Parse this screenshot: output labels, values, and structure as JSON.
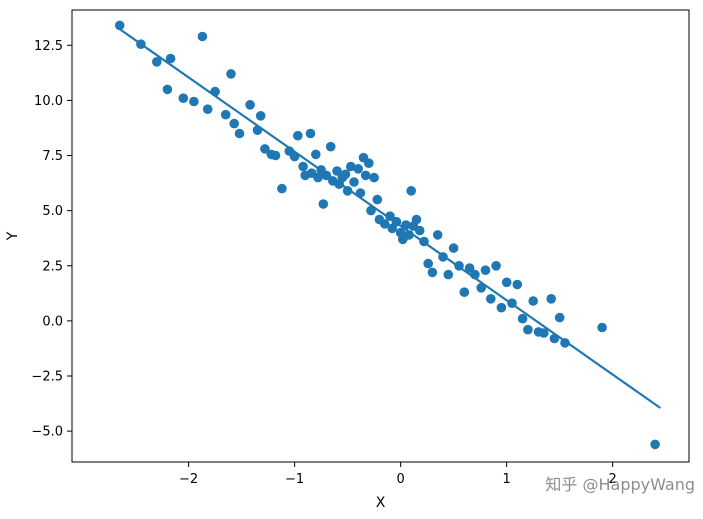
{
  "figure": {
    "background": "#ffffff"
  },
  "watermark": {
    "text": "知乎 @HappyWang",
    "color": "#8e8e8e"
  },
  "chart_data": {
    "type": "scatter",
    "title": "",
    "xlabel": "X",
    "ylabel": "Y",
    "xlim": [
      -3.1,
      2.72
    ],
    "ylim": [
      -6.4,
      14.1
    ],
    "grid": false,
    "legend": "none",
    "point_color": "#1f77b4",
    "line_color": "#1f77b4",
    "axis_color": "#000000",
    "xticks": [
      {
        "value": -2,
        "label": "−2"
      },
      {
        "value": -1,
        "label": "−1"
      },
      {
        "value": 0,
        "label": "0"
      },
      {
        "value": 1,
        "label": "1"
      },
      {
        "value": 2,
        "label": "2"
      }
    ],
    "yticks": [
      {
        "value": 12.5,
        "label": "12.5"
      },
      {
        "value": 10.0,
        "label": "10.0"
      },
      {
        "value": 7.5,
        "label": "7.5"
      },
      {
        "value": 5.0,
        "label": "5.0"
      },
      {
        "value": 2.5,
        "label": "2.5"
      },
      {
        "value": 0.0,
        "label": "0.0"
      },
      {
        "value": -2.5,
        "label": "−2.5"
      },
      {
        "value": -5.0,
        "label": "−5.0"
      }
    ],
    "regression_line": {
      "x1": -2.67,
      "y1": 13.3,
      "x2": 2.45,
      "y2": -3.95
    },
    "points": [
      [
        -2.65,
        13.4
      ],
      [
        -2.45,
        12.55
      ],
      [
        -2.3,
        11.75
      ],
      [
        -2.17,
        11.9
      ],
      [
        -2.2,
        10.5
      ],
      [
        -2.05,
        10.1
      ],
      [
        -1.87,
        12.9
      ],
      [
        -1.95,
        9.95
      ],
      [
        -1.82,
        9.6
      ],
      [
        -1.75,
        10.4
      ],
      [
        -1.6,
        11.2
      ],
      [
        -1.65,
        9.35
      ],
      [
        -1.57,
        8.95
      ],
      [
        -1.52,
        8.5
      ],
      [
        -1.42,
        9.8
      ],
      [
        -1.32,
        9.3
      ],
      [
        -1.35,
        8.65
      ],
      [
        -1.28,
        7.8
      ],
      [
        -1.22,
        7.55
      ],
      [
        -1.18,
        7.5
      ],
      [
        -1.12,
        6.0
      ],
      [
        -1.05,
        7.7
      ],
      [
        -1.0,
        7.45
      ],
      [
        -0.97,
        8.4
      ],
      [
        -0.92,
        7.0
      ],
      [
        -0.9,
        6.6
      ],
      [
        -0.85,
        8.5
      ],
      [
        -0.84,
        6.7
      ],
      [
        -0.8,
        7.55
      ],
      [
        -0.78,
        6.5
      ],
      [
        -0.75,
        6.85
      ],
      [
        -0.73,
        5.3
      ],
      [
        -0.7,
        6.6
      ],
      [
        -0.66,
        7.9
      ],
      [
        -0.64,
        6.35
      ],
      [
        -0.6,
        6.8
      ],
      [
        -0.58,
        6.2
      ],
      [
        -0.55,
        6.5
      ],
      [
        -0.52,
        6.65
      ],
      [
        -0.5,
        5.9
      ],
      [
        -0.47,
        7.0
      ],
      [
        -0.44,
        6.3
      ],
      [
        -0.4,
        6.9
      ],
      [
        -0.38,
        5.8
      ],
      [
        -0.35,
        7.4
      ],
      [
        -0.33,
        6.6
      ],
      [
        -0.3,
        7.15
      ],
      [
        -0.28,
        5.0
      ],
      [
        -0.25,
        6.5
      ],
      [
        -0.22,
        5.5
      ],
      [
        -0.2,
        4.6
      ],
      [
        -0.15,
        4.4
      ],
      [
        -0.1,
        4.75
      ],
      [
        -0.08,
        4.2
      ],
      [
        -0.04,
        4.5
      ],
      [
        0.0,
        4.0
      ],
      [
        0.02,
        3.7
      ],
      [
        0.05,
        4.35
      ],
      [
        0.08,
        3.9
      ],
      [
        0.1,
        5.9
      ],
      [
        0.12,
        4.3
      ],
      [
        0.15,
        4.6
      ],
      [
        0.18,
        4.1
      ],
      [
        0.22,
        3.6
      ],
      [
        0.26,
        2.6
      ],
      [
        0.3,
        2.2
      ],
      [
        0.35,
        3.9
      ],
      [
        0.4,
        2.9
      ],
      [
        0.45,
        2.1
      ],
      [
        0.5,
        3.3
      ],
      [
        0.55,
        2.5
      ],
      [
        0.6,
        1.3
      ],
      [
        0.65,
        2.4
      ],
      [
        0.7,
        2.1
      ],
      [
        0.76,
        1.5
      ],
      [
        0.8,
        2.3
      ],
      [
        0.85,
        1.0
      ],
      [
        0.9,
        2.5
      ],
      [
        0.95,
        0.6
      ],
      [
        1.0,
        1.75
      ],
      [
        1.05,
        0.8
      ],
      [
        1.1,
        1.65
      ],
      [
        1.15,
        0.1
      ],
      [
        1.2,
        -0.4
      ],
      [
        1.25,
        0.9
      ],
      [
        1.3,
        -0.5
      ],
      [
        1.35,
        -0.55
      ],
      [
        1.42,
        1.0
      ],
      [
        1.45,
        -0.8
      ],
      [
        1.5,
        0.15
      ],
      [
        1.55,
        -1.0
      ],
      [
        1.9,
        -0.3
      ],
      [
        2.4,
        -5.6
      ]
    ]
  }
}
